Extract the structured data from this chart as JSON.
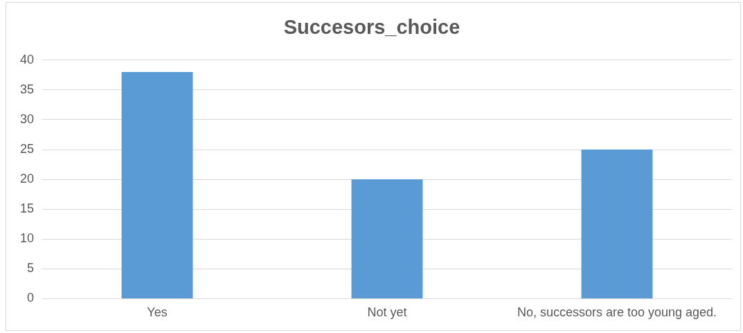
{
  "chart_data": {
    "type": "bar",
    "title": "Succesors_choice",
    "categories": [
      "Yes",
      "Not yet",
      "No, successors are too young aged."
    ],
    "values": [
      38,
      20,
      25
    ],
    "color": "#5b9bd5",
    "ylim": [
      0,
      40
    ],
    "yticks": [
      0,
      5,
      10,
      15,
      20,
      25,
      30,
      35,
      40
    ],
    "grid": "y",
    "legend": false
  }
}
